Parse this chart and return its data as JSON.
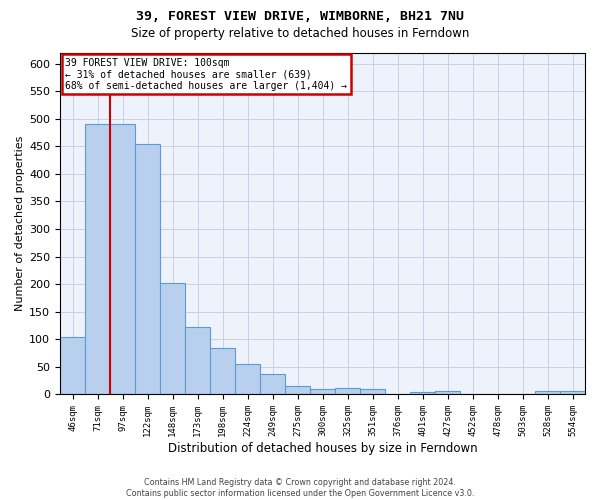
{
  "title": "39, FOREST VIEW DRIVE, WIMBORNE, BH21 7NU",
  "subtitle": "Size of property relative to detached houses in Ferndown",
  "xlabel": "Distribution of detached houses by size in Ferndown",
  "ylabel": "Number of detached properties",
  "footer_line1": "Contains HM Land Registry data © Crown copyright and database right 2024.",
  "footer_line2": "Contains public sector information licensed under the Open Government Licence v3.0.",
  "annotation_line1": "39 FOREST VIEW DRIVE: 100sqm",
  "annotation_line2": "← 31% of detached houses are smaller (639)",
  "annotation_line3": "68% of semi-detached houses are larger (1,404) →",
  "categories": [
    "46sqm",
    "71sqm",
    "97sqm",
    "122sqm",
    "148sqm",
    "173sqm",
    "198sqm",
    "224sqm",
    "249sqm",
    "275sqm",
    "300sqm",
    "325sqm",
    "351sqm",
    "376sqm",
    "401sqm",
    "427sqm",
    "452sqm",
    "478sqm",
    "503sqm",
    "528sqm",
    "554sqm"
  ],
  "values": [
    105,
    490,
    490,
    455,
    202,
    122,
    84,
    56,
    38,
    16,
    10,
    11,
    10,
    0,
    5,
    6,
    0,
    0,
    0,
    7,
    6
  ],
  "bar_color": "#b8d0ee",
  "bar_edge_color": "#5b9bd5",
  "red_line_x": 1.5,
  "red_line_color": "#cc0000",
  "plot_bg_color": "#edf2fb",
  "grid_color": "#c8d0e8",
  "ylim_max": 620,
  "yticks": [
    0,
    50,
    100,
    150,
    200,
    250,
    300,
    350,
    400,
    450,
    500,
    550,
    600
  ]
}
